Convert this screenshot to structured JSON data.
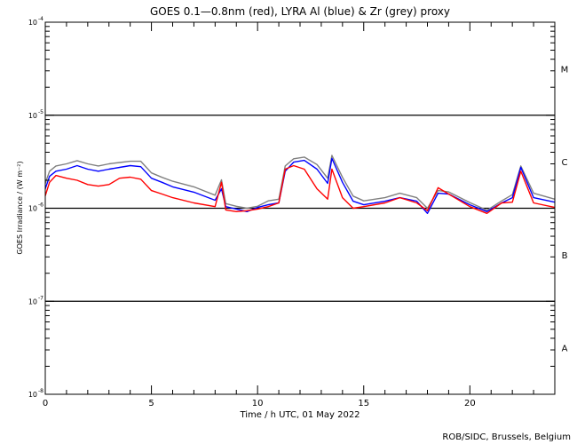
{
  "chart_data": {
    "type": "line",
    "title": "GOES 0.1—0.8nm (red), LYRA Al (blue) & Zr (grey) proxy",
    "xlabel": "Time / h UTC, 01 May 2022",
    "ylabel": "GOES Irradiance / (W m⁻²)",
    "xlim": [
      0,
      24
    ],
    "ylim": [
      1e-08,
      0.0001
    ],
    "yscale": "log",
    "x_ticks": [
      "0",
      "5",
      "10",
      "15",
      "20"
    ],
    "x_tick_values": [
      0,
      5,
      10,
      15,
      20
    ],
    "y_ticks": [
      {
        "base": "10",
        "exp": "-4",
        "value": 0.0001
      },
      {
        "base": "10",
        "exp": "-5",
        "value": 1e-05
      },
      {
        "base": "10",
        "exp": "-6",
        "value": 1e-06
      },
      {
        "base": "10",
        "exp": "-7",
        "value": 1e-07
      },
      {
        "base": "10",
        "exp": "-8",
        "value": 1e-08
      }
    ],
    "flare_classes": [
      {
        "label": "M",
        "value": 3.16e-05
      },
      {
        "label": "C",
        "value": 3.16e-06
      },
      {
        "label": "B",
        "value": 3.16e-07
      },
      {
        "label": "A",
        "value": 3.16e-08
      }
    ],
    "grid_lines": [
      1e-05,
      1e-06,
      1e-07
    ],
    "x": [
      0,
      0.2,
      0.5,
      1,
      1.5,
      2,
      2.5,
      3,
      3.5,
      4,
      4.5,
      5,
      5.5,
      6,
      7,
      8,
      8.3,
      8.5,
      9,
      9.5,
      10,
      10.5,
      11,
      11.3,
      11.7,
      12.2,
      12.8,
      13.3,
      13.5,
      14,
      14.5,
      15,
      16,
      16.7,
      17.5,
      18,
      18.5,
      19,
      20,
      20.8,
      21.5,
      22,
      22.4,
      23,
      24
    ],
    "series": [
      {
        "name": "GOES 0.1-0.8nm",
        "color": "#ff0000",
        "values": [
          1.36e-06,
          1.9e-06,
          2.25e-06,
          2.1e-06,
          2e-06,
          1.8e-06,
          1.73e-06,
          1.8e-06,
          2.1e-06,
          2.16e-06,
          2.05e-06,
          1.55e-06,
          1.42e-06,
          1.3e-06,
          1.14e-06,
          1.04e-06,
          1.9e-06,
          9.6e-07,
          9.2e-07,
          9.4e-07,
          9.8e-07,
          1.04e-06,
          1.14e-06,
          2.63e-06,
          2.87e-06,
          2.63e-06,
          1.62e-06,
          1.25e-06,
          2.63e-06,
          1.3e-06,
          1e-06,
          1.04e-06,
          1.14e-06,
          1.3e-06,
          1.14e-06,
          9.4e-07,
          1.66e-06,
          1.42e-06,
          1.04e-06,
          8.8e-07,
          1.14e-06,
          1.16e-06,
          2.5e-06,
          1.14e-06,
          1.02e-06
        ]
      },
      {
        "name": "LYRA Al proxy",
        "color": "#0000ff",
        "values": [
          1.62e-06,
          2.2e-06,
          2.5e-06,
          2.63e-06,
          2.87e-06,
          2.63e-06,
          2.5e-06,
          2.63e-06,
          2.75e-06,
          2.87e-06,
          2.8e-06,
          2.1e-06,
          1.9e-06,
          1.7e-06,
          1.49e-06,
          1.22e-06,
          1.62e-06,
          1.04e-06,
          9.8e-07,
          9.2e-07,
          1.02e-06,
          1.09e-06,
          1.14e-06,
          2.5e-06,
          3.13e-06,
          3.27e-06,
          2.63e-06,
          1.85e-06,
          3.43e-06,
          1.9e-06,
          1.19e-06,
          1.09e-06,
          1.19e-06,
          1.3e-06,
          1.19e-06,
          8.8e-07,
          1.45e-06,
          1.42e-06,
          1.09e-06,
          9.2e-07,
          1.14e-06,
          1.3e-06,
          2.75e-06,
          1.3e-06,
          1.16e-06
        ]
      },
      {
        "name": "LYRA Zr proxy",
        "color": "#808080",
        "values": [
          1.85e-06,
          2.5e-06,
          2.85e-06,
          3e-06,
          3.25e-06,
          3e-06,
          2.85e-06,
          3e-06,
          3.1e-06,
          3.2e-06,
          3.2e-06,
          2.4e-06,
          2.15e-06,
          1.95e-06,
          1.7e-06,
          1.38e-06,
          2.02e-06,
          1.12e-06,
          1.05e-06,
          1e-06,
          1.05e-06,
          1.2e-06,
          1.25e-06,
          2.85e-06,
          3.4e-06,
          3.55e-06,
          2.95e-06,
          2.1e-06,
          3.7e-06,
          2.15e-06,
          1.35e-06,
          1.2e-06,
          1.3e-06,
          1.45e-06,
          1.3e-06,
          1e-06,
          1.55e-06,
          1.5e-06,
          1.15e-06,
          9.5e-07,
          1.2e-06,
          1.4e-06,
          2.85e-06,
          1.45e-06,
          1.25e-06
        ]
      }
    ],
    "legend": "none",
    "credit": "ROB/SIDC, Brussels, Belgium"
  }
}
